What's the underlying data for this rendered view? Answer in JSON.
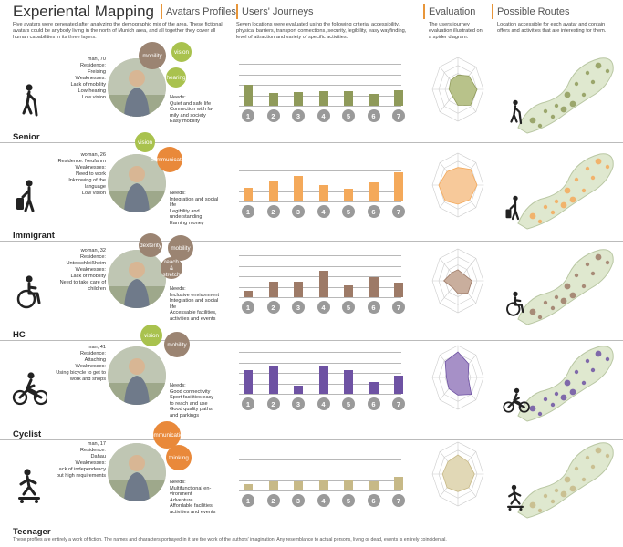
{
  "header": {
    "title": "Experiental Mapping",
    "subtitle": "Avatars Profiles",
    "description": "Five avatars were generated after analyzing the demographic mix of the area. These fictional avatars could be anybody living in the north of Munich area, and all together they cover all human capabilities in its three layers.",
    "journeys_title": "Users' Journeys",
    "journeys_desc": "Seven locations were evaluated using the following criteria: accessibility, physical barriers, transport connections, security, legibility, easy wayfinding, level of attraction and variety of specific activities.",
    "evaluation_title": "Evaluation",
    "evaluation_desc": "The users journey evaluation illustrated on a spider diagram.",
    "routes_title": "Possible Routes",
    "routes_desc": "Location accessible for each avatar and contain offers and activities that are interesting for them."
  },
  "avatars": [
    {
      "label": "Senior",
      "info": [
        "man, 70",
        "Residence:",
        "Freising",
        "Weaknesses:",
        "Lack of mobility",
        "Low hearing",
        "Low vision"
      ],
      "needs": [
        "Needs:",
        "Quiet and safe life",
        "Connection with fa-",
        "mily and society",
        "Easy mobility"
      ],
      "bursts": [
        "mobility",
        "vision",
        "hearing"
      ],
      "burst_colors": [
        "#9b8472",
        "#a9c24e",
        "#a9c24e"
      ],
      "color": "#8f9a5a",
      "icon": "senior-walking-cane-icon",
      "chart_data": {
        "type": "bar",
        "categories": [
          "1",
          "2",
          "3",
          "4",
          "5",
          "6",
          "7"
        ],
        "values": [
          2,
          1.2,
          1.3,
          1.4,
          1.4,
          1.1,
          1.5
        ],
        "ylim": [
          0,
          4
        ],
        "grid": true,
        "color": "#8f9a5a"
      },
      "spider": [
        0.45,
        0.6,
        0.75,
        0.7,
        0.5,
        0.3,
        0.35,
        0.4
      ],
      "spider_color": "#b8c28a"
    },
    {
      "label": "Immigrant",
      "info": [
        "woman, 26",
        "Residence: Neufahrn",
        "Weaknesses:",
        "Need to work",
        "Unknowing of the",
        "language",
        "Low vision"
      ],
      "needs": [
        "Needs:",
        "Integration and social",
        "life",
        "Legibility and",
        "understanding",
        "Earning money"
      ],
      "bursts": [
        "vision",
        "communication"
      ],
      "burst_colors": [
        "#a9c24e",
        "#e9893a"
      ],
      "color": "#f4a95a",
      "icon": "person-with-suitcase-icon",
      "chart_data": {
        "type": "bar",
        "categories": [
          "1",
          "2",
          "3",
          "4",
          "5",
          "6",
          "7"
        ],
        "values": [
          1.3,
          1.9,
          2.4,
          1.6,
          1.2,
          1.8,
          2.8
        ],
        "ylim": [
          0,
          4
        ],
        "grid": true,
        "color": "#f4a95a"
      },
      "spider": [
        0.55,
        0.7,
        0.75,
        0.65,
        0.6,
        0.7,
        0.75,
        0.6
      ],
      "spider_color": "#f7c99a"
    },
    {
      "label": "HC",
      "info": [
        "woman, 32",
        "Residence:",
        "Unterschleißheim",
        "Weaknesses:",
        "Lack of mobility",
        "Need to take care of",
        "children"
      ],
      "needs": [
        "Needs:",
        "Inclusive environment",
        "Integration and social",
        "life",
        "Accessable facilities,",
        "activities and events"
      ],
      "bursts": [
        "dexterity",
        "mobility",
        "reach & stretch"
      ],
      "burst_colors": [
        "#9b8472",
        "#9b8472",
        "#9b8472"
      ],
      "color": "#9d7a67",
      "icon": "wheelchair-icon",
      "chart_data": {
        "type": "bar",
        "categories": [
          "1",
          "2",
          "3",
          "4",
          "5",
          "6",
          "7"
        ],
        "values": [
          0.6,
          1.5,
          1.5,
          2.5,
          1.1,
          1.9,
          1.4
        ],
        "ylim": [
          0,
          4
        ],
        "grid": true,
        "color": "#9d7a67"
      },
      "spider": [
        0.35,
        0.3,
        0.55,
        0.55,
        0.4,
        0.3,
        0.55,
        0.35
      ],
      "spider_color": "#c9ae9d"
    },
    {
      "label": "Cyclist",
      "info": [
        "man, 41",
        "Residence:",
        "Attaching",
        "Weaknesses:",
        "Using bicycle to get to",
        "work and shops"
      ],
      "needs": [
        "Needs:",
        "Good connectivity",
        "Sport facilities easy",
        "to reach and use",
        "Good quality paths",
        "and parkings"
      ],
      "bursts": [
        "vision",
        "mobility"
      ],
      "burst_colors": [
        "#a9c24e",
        "#9b8472"
      ],
      "color": "#6e52a3",
      "icon": "cyclist-icon",
      "chart_data": {
        "type": "bar",
        "categories": [
          "1",
          "2",
          "3",
          "4",
          "5",
          "6",
          "7"
        ],
        "values": [
          2.3,
          2.6,
          0.8,
          2.6,
          2.3,
          1.1,
          1.7
        ],
        "ylim": [
          0,
          4
        ],
        "grid": true,
        "color": "#6e52a3"
      },
      "spider": [
        0.8,
        0.6,
        0.4,
        0.75,
        0.55,
        0.5,
        0.45,
        0.7
      ],
      "spider_color": "#a690c7"
    },
    {
      "label": "Teenager",
      "info": [
        "man, 17",
        "Residence:",
        "Dahau",
        "Weaknesses:",
        "Lack of independency",
        "but high requirements"
      ],
      "needs": [
        "Needs:",
        "Multifunctional en-",
        "vironment",
        "Adventure",
        "Affordable facilities,",
        "activities and events"
      ],
      "bursts": [
        "communication",
        "thinking"
      ],
      "burst_colors": [
        "#e9893a",
        "#e9893a"
      ],
      "color": "#c7b987",
      "icon": "skateboarder-icon",
      "chart_data": {
        "type": "bar",
        "categories": [
          "1",
          "2",
          "3",
          "4",
          "5",
          "6",
          "7"
        ],
        "values": [
          0.6,
          0.9,
          0.9,
          1.0,
          1.0,
          0.9,
          1.3
        ],
        "ylim": [
          0,
          4
        ],
        "grid": true,
        "color": "#c7b987"
      },
      "spider": [
        0.6,
        0.55,
        0.65,
        0.6,
        0.55,
        0.6,
        0.6,
        0.55
      ],
      "spider_color": "#e1d8b6"
    }
  ],
  "footer": "These profiles are entirely a work of fiction. The names and characters portrayed in it are the work of the authors' imagination. Any resemblance to actual persons, living or dead, events is entirely coincidental."
}
